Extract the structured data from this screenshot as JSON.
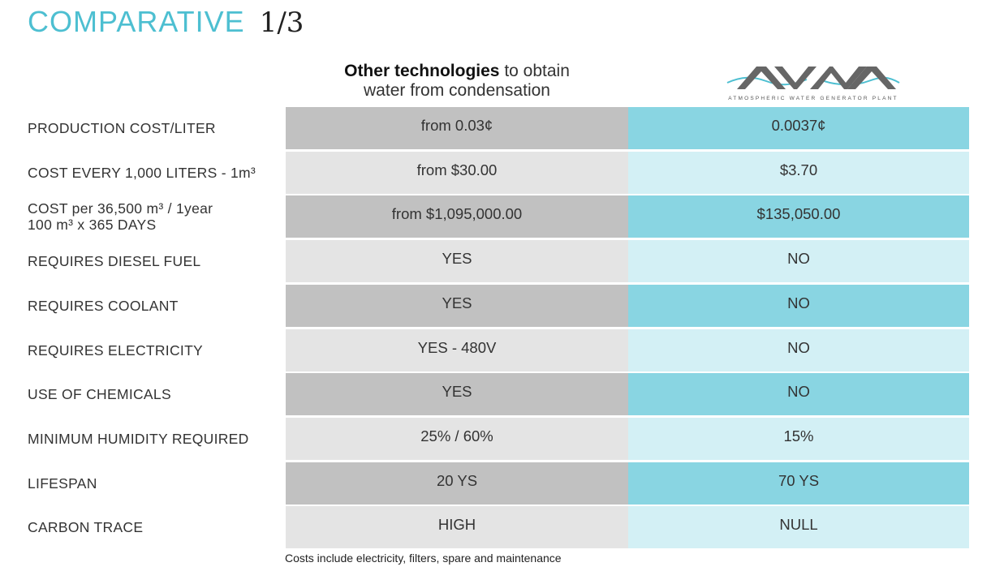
{
  "title": {
    "main": "COMPARATIVE",
    "page": "1/3"
  },
  "columns": {
    "other_bold": "Other technologies",
    "other_rest": "to obtain",
    "other_line2": "water from condensation",
    "brand_caption": "ATMOSPHERIC WATER GENERATOR PLANT"
  },
  "colors": {
    "accent": "#4dbfd1",
    "other_dark": "#c1c1c1",
    "other_light": "#e4e4e4",
    "awg_dark": "#89d5e2",
    "awg_light": "#d3f0f5"
  },
  "rows": [
    {
      "label": "PRODUCTION COST/LITER",
      "other": "from 0.03¢",
      "awg": "0.0037¢"
    },
    {
      "label": "COST EVERY 1,000 LITERS - 1m³",
      "other": "from $30.00",
      "awg": "$3.70"
    },
    {
      "label": "COST per 36,500 m³ / 1year\n100 m³ x 365 DAYS",
      "other": "from $1,095,000.00",
      "awg": "$135,050.00"
    },
    {
      "label": "REQUIRES DIESEL FUEL",
      "other": "YES",
      "awg": "NO"
    },
    {
      "label": "REQUIRES COOLANT",
      "other": "YES",
      "awg": "NO"
    },
    {
      "label": "REQUIRES ELECTRICITY",
      "other": "YES - 480V",
      "awg": "NO"
    },
    {
      "label": "USE OF CHEMICALS",
      "other": "YES",
      "awg": "NO"
    },
    {
      "label": "MINIMUM HUMIDITY REQUIRED",
      "other": "25% / 60%",
      "awg": "15%"
    },
    {
      "label": "LIFESPAN",
      "other": "20 YS",
      "awg": "70 YS"
    },
    {
      "label": "CARBON TRACE",
      "other": "HIGH",
      "awg": "NULL"
    }
  ],
  "footnote": "Costs include electricity, filters, spare and maintenance"
}
